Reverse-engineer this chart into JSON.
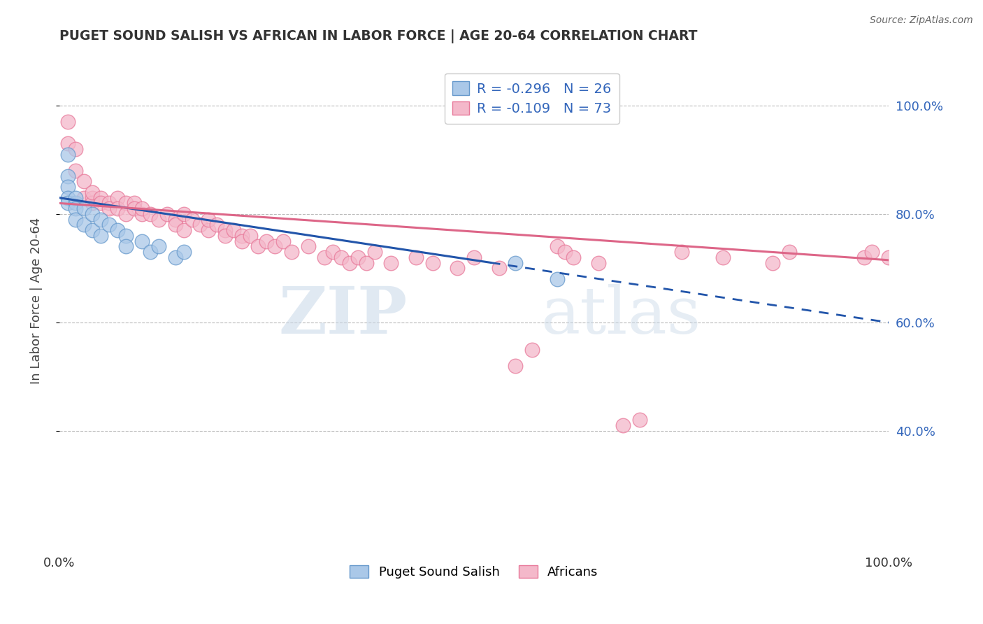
{
  "title": "PUGET SOUND SALISH VS AFRICAN IN LABOR FORCE | AGE 20-64 CORRELATION CHART",
  "source_text": "Source: ZipAtlas.com",
  "ylabel": "In Labor Force | Age 20-64",
  "xlim": [
    0.0,
    1.0
  ],
  "ylim": [
    0.18,
    1.1
  ],
  "ytick_vals": [
    0.4,
    0.6,
    0.8,
    1.0
  ],
  "ytick_labels": [
    "40.0%",
    "60.0%",
    "80.0%",
    "100.0%"
  ],
  "blue_r": -0.296,
  "blue_n": 26,
  "pink_r": -0.109,
  "pink_n": 73,
  "legend_label_blue": "Puget Sound Salish",
  "legend_label_pink": "Africans",
  "blue_fill_color": "#aac8e8",
  "pink_fill_color": "#f4b8ca",
  "blue_edge_color": "#6699cc",
  "pink_edge_color": "#e8799a",
  "blue_line_color": "#2255aa",
  "pink_line_color": "#dd6688",
  "watermark_zip": "ZIP",
  "watermark_atlas": "atlas",
  "blue_line_y0": 0.83,
  "blue_line_y1": 0.6,
  "pink_line_y0": 0.82,
  "pink_line_y1": 0.715,
  "blue_x": [
    0.01,
    0.01,
    0.01,
    0.01,
    0.01,
    0.02,
    0.02,
    0.02,
    0.02,
    0.03,
    0.03,
    0.04,
    0.04,
    0.05,
    0.05,
    0.06,
    0.07,
    0.08,
    0.08,
    0.1,
    0.11,
    0.12,
    0.14,
    0.15,
    0.55,
    0.6
  ],
  "blue_y": [
    0.91,
    0.87,
    0.85,
    0.83,
    0.82,
    0.82,
    0.83,
    0.81,
    0.79,
    0.81,
    0.78,
    0.8,
    0.77,
    0.79,
    0.76,
    0.78,
    0.77,
    0.76,
    0.74,
    0.75,
    0.73,
    0.74,
    0.72,
    0.73,
    0.71,
    0.68
  ],
  "pink_x": [
    0.01,
    0.01,
    0.02,
    0.02,
    0.03,
    0.03,
    0.04,
    0.04,
    0.04,
    0.05,
    0.05,
    0.06,
    0.06,
    0.07,
    0.07,
    0.08,
    0.08,
    0.09,
    0.09,
    0.1,
    0.1,
    0.11,
    0.12,
    0.13,
    0.14,
    0.14,
    0.15,
    0.15,
    0.16,
    0.17,
    0.18,
    0.18,
    0.19,
    0.2,
    0.2,
    0.21,
    0.22,
    0.22,
    0.23,
    0.24,
    0.25,
    0.26,
    0.27,
    0.28,
    0.3,
    0.32,
    0.33,
    0.34,
    0.35,
    0.36,
    0.37,
    0.38,
    0.4,
    0.43,
    0.45,
    0.48,
    0.5,
    0.53,
    0.55,
    0.57,
    0.6,
    0.61,
    0.62,
    0.65,
    0.68,
    0.7,
    0.75,
    0.8,
    0.86,
    0.88,
    0.97,
    0.98,
    1.0
  ],
  "pink_y": [
    0.97,
    0.93,
    0.92,
    0.88,
    0.86,
    0.83,
    0.83,
    0.82,
    0.84,
    0.83,
    0.82,
    0.82,
    0.81,
    0.83,
    0.81,
    0.82,
    0.8,
    0.82,
    0.81,
    0.8,
    0.81,
    0.8,
    0.79,
    0.8,
    0.79,
    0.78,
    0.8,
    0.77,
    0.79,
    0.78,
    0.77,
    0.79,
    0.78,
    0.77,
    0.76,
    0.77,
    0.76,
    0.75,
    0.76,
    0.74,
    0.75,
    0.74,
    0.75,
    0.73,
    0.74,
    0.72,
    0.73,
    0.72,
    0.71,
    0.72,
    0.71,
    0.73,
    0.71,
    0.72,
    0.71,
    0.7,
    0.72,
    0.7,
    0.52,
    0.55,
    0.74,
    0.73,
    0.72,
    0.71,
    0.41,
    0.42,
    0.73,
    0.72,
    0.71,
    0.73,
    0.72,
    0.73,
    0.72
  ]
}
